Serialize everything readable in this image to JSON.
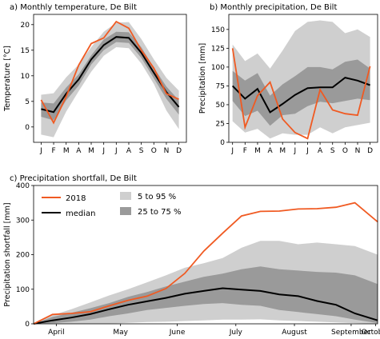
{
  "colors": {
    "y2018": "#f05a22",
    "median": "#000000",
    "band_5_95": "#cfcfcf",
    "band_25_75": "#9a9a9a"
  },
  "chart_data": [
    {
      "id": "a",
      "type": "line",
      "title": "a) Monthly temperature, De Bilt",
      "xlabel": "",
      "ylabel": "Temperature [°C]",
      "categories": [
        "J",
        "F",
        "M",
        "A",
        "M",
        "J",
        "J",
        "A",
        "S",
        "O",
        "N",
        "D"
      ],
      "ylim": [
        -3,
        22
      ],
      "yticks": [
        0,
        5,
        10,
        15,
        20
      ],
      "series": [
        {
          "name": "2018",
          "values": [
            5.3,
            0.8,
            5.9,
            12.1,
            16.3,
            17.4,
            20.6,
            19.3,
            15.0,
            11.5,
            6.5,
            5.4
          ]
        },
        {
          "name": "median",
          "values": [
            3.5,
            2.9,
            6.5,
            9.3,
            13.2,
            16.0,
            17.6,
            17.4,
            14.5,
            10.6,
            6.8,
            3.9
          ]
        }
      ],
      "bands": [
        {
          "name": "5 to 95 %",
          "low": [
            -1.5,
            -2.0,
            3.0,
            7.0,
            10.8,
            13.9,
            15.6,
            15.4,
            12.4,
            8.4,
            3.2,
            -0.4
          ],
          "high": [
            6.3,
            6.6,
            9.7,
            12.2,
            15.6,
            18.6,
            20.4,
            20.5,
            17.2,
            13.2,
            9.6,
            7.1
          ]
        },
        {
          "name": "25 to 75 %",
          "low": [
            2.0,
            1.3,
            5.2,
            8.1,
            12.2,
            15.0,
            16.6,
            16.4,
            13.5,
            9.5,
            5.5,
            2.4
          ],
          "high": [
            4.8,
            4.6,
            7.7,
            10.3,
            14.0,
            17.1,
            18.6,
            18.5,
            15.6,
            11.6,
            7.9,
            5.2
          ]
        }
      ]
    },
    {
      "id": "b",
      "type": "line",
      "title": "b) Monthly precipitation, De Bilt",
      "xlabel": "",
      "ylabel": "Precipitation [mm]",
      "categories": [
        "J",
        "F",
        "M",
        "A",
        "M",
        "J",
        "J",
        "A",
        "S",
        "O",
        "N",
        "D"
      ],
      "ylim": [
        0,
        170
      ],
      "yticks": [
        0,
        25,
        50,
        75,
        100,
        125,
        150
      ],
      "series": [
        {
          "name": "2018",
          "values": [
            125,
            20,
            62,
            80,
            31,
            13,
            5,
            70,
            43,
            38,
            36,
            101
          ]
        },
        {
          "name": "median",
          "values": [
            75,
            58,
            71,
            40,
            51,
            63,
            72,
            73,
            73,
            86,
            82,
            76
          ]
        }
      ],
      "bands": [
        {
          "name": "5 to 95 %",
          "low": [
            28,
            13,
            18,
            5,
            12,
            10,
            10,
            20,
            12,
            20,
            23,
            26
          ],
          "high": [
            130,
            108,
            118,
            98,
            122,
            148,
            160,
            162,
            160,
            145,
            150,
            140
          ]
        },
        {
          "name": "25 to 75 %",
          "low": [
            55,
            35,
            42,
            22,
            36,
            38,
            48,
            54,
            52,
            55,
            58,
            56
          ],
          "high": [
            95,
            82,
            92,
            62,
            77,
            88,
            100,
            100,
            97,
            107,
            110,
            98
          ]
        }
      ]
    },
    {
      "id": "c",
      "type": "line",
      "title": "c) Precipitation shortfall, De Bilt",
      "xlabel": "",
      "ylabel": "Precipitation shortfall [mm]",
      "x_tick_labels": [
        "April",
        "May",
        "June",
        "July",
        "August",
        "September",
        "October"
      ],
      "ylim": [
        0,
        400
      ],
      "yticks": [
        0,
        100,
        200,
        300,
        400
      ],
      "legend": [
        "2018",
        "median",
        "5 to 95 %",
        "25 to 75 %"
      ],
      "legend_position": "upper-left",
      "x_days": [
        0,
        10,
        20,
        30,
        40,
        50,
        60,
        70,
        80,
        90,
        100,
        110,
        120,
        130,
        140,
        150,
        160,
        170,
        182
      ],
      "series": [
        {
          "name": "2018",
          "values": [
            0,
            27,
            30,
            35,
            52,
            68,
            80,
            102,
            146,
            210,
            262,
            312,
            325,
            326,
            332,
            333,
            337,
            350,
            295
          ]
        },
        {
          "name": "median",
          "values": [
            0,
            10,
            18,
            28,
            42,
            55,
            65,
            75,
            87,
            95,
            103,
            99,
            95,
            85,
            80,
            66,
            55,
            30,
            10
          ]
        }
      ],
      "bands": [
        {
          "name": "5 to 95 %",
          "low": [
            0,
            0,
            0,
            0,
            0,
            3,
            5,
            6,
            8,
            10,
            12,
            12,
            13,
            10,
            8,
            6,
            4,
            2,
            0
          ],
          "high": [
            0,
            25,
            42,
            62,
            82,
            100,
            120,
            140,
            162,
            175,
            190,
            220,
            240,
            240,
            230,
            235,
            230,
            225,
            200
          ]
        },
        {
          "name": "25 to 75 %",
          "low": [
            0,
            2,
            6,
            12,
            22,
            30,
            40,
            46,
            52,
            57,
            60,
            55,
            52,
            40,
            34,
            28,
            22,
            12,
            2
          ],
          "high": [
            0,
            20,
            32,
            45,
            60,
            78,
            92,
            108,
            122,
            136,
            145,
            158,
            166,
            158,
            154,
            150,
            148,
            140,
            115
          ]
        }
      ]
    }
  ]
}
